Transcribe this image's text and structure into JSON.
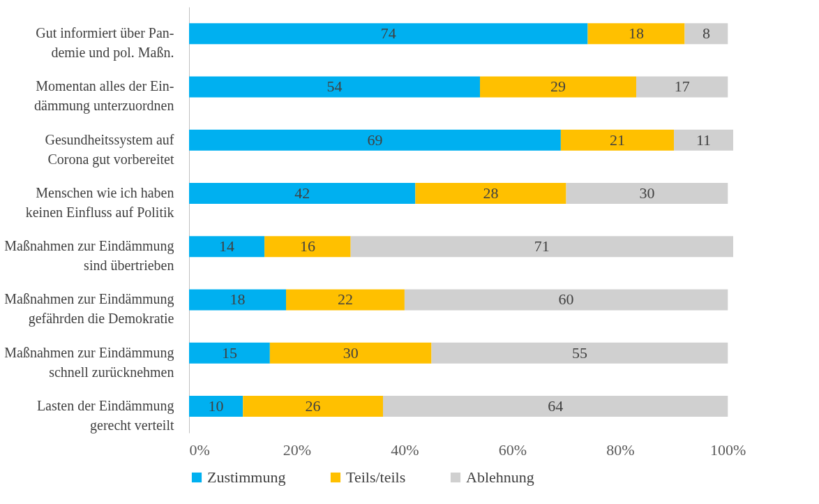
{
  "chart_data": {
    "type": "bar",
    "orientation": "horizontal",
    "stacked": true,
    "data_labels": true,
    "grid": false,
    "legend": "bottom",
    "categories": [
      "Gut informiert über Pan-\ndemie und pol. Maßn.",
      "Momentan alles der Ein-\ndämmung unterzuordnen",
      "Gesundheitssystem auf\nCorona gut vorbereitet",
      "Menschen wie ich haben\nkeinen Einfluss auf Politik",
      "Maßnahmen zur Eindämmung\nsind übertrieben",
      "Maßnahmen zur Eindämmung\ngefährden die Demokratie",
      "Maßnahmen zur Eindämmung\nschnell zurücknehmen",
      "Lasten der Eindämmung\ngerecht verteilt"
    ],
    "series": [
      {
        "name": "Zustimmung",
        "color": "#00b0f0",
        "values": [
          74,
          54,
          69,
          42,
          14,
          18,
          15,
          10
        ]
      },
      {
        "name": "Teils/teils",
        "color": "#ffc000",
        "values": [
          18,
          29,
          21,
          28,
          16,
          22,
          30,
          26
        ]
      },
      {
        "name": "Ablehnung",
        "color": "#d0d0d0",
        "values": [
          8,
          17,
          11,
          30,
          71,
          60,
          55,
          64
        ]
      }
    ],
    "xlim": [
      0,
      101
    ],
    "xticks": [
      {
        "value": 0,
        "label": "0%"
      },
      {
        "value": 20,
        "label": "20%"
      },
      {
        "value": 40,
        "label": "40%"
      },
      {
        "value": 60,
        "label": "60%"
      },
      {
        "value": 80,
        "label": "80%"
      },
      {
        "value": 100,
        "label": "100%"
      }
    ]
  }
}
